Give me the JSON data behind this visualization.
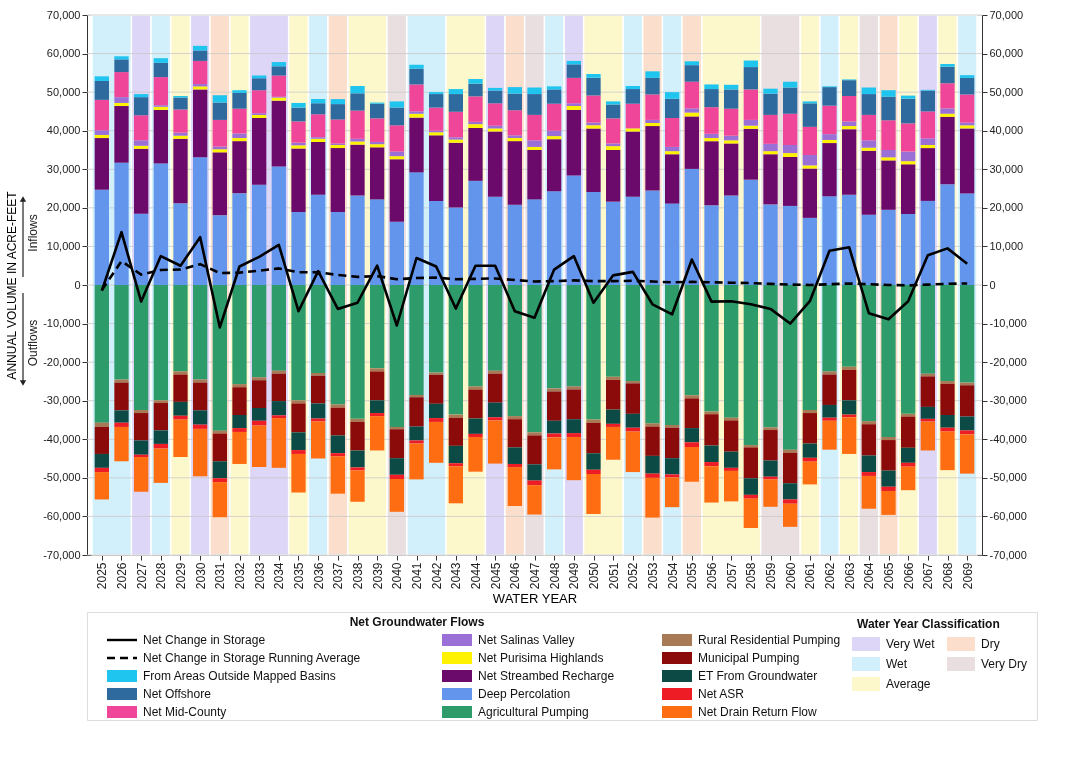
{
  "chart_data": {
    "type": "bar",
    "stacked": true,
    "xlabel": "WATER YEAR",
    "ylabel": "ANNUAL VOLUME IN ACRE-FEET",
    "legend_title": "Net Groundwater Flows",
    "annotations": [
      "Inflows",
      "Outflows",
      "Water Year Classification"
    ],
    "categories": [
      "2025",
      "2026",
      "2027",
      "2028",
      "2029",
      "2030",
      "2031",
      "2032",
      "2033",
      "2034",
      "2035",
      "2036",
      "2037",
      "2038",
      "2039",
      "2040",
      "2041",
      "2042",
      "2043",
      "2044",
      "2045",
      "2046",
      "2047",
      "2048",
      "2049",
      "2050",
      "2051",
      "2052",
      "2053",
      "2054",
      "2055",
      "2056",
      "2057",
      "2058",
      "2059",
      "2060",
      "2061",
      "2062",
      "2063",
      "2064",
      "2065",
      "2066",
      "2067",
      "2068",
      "2069"
    ],
    "series": [
      {
        "name": "Deep Percolation",
        "color": "#6495ed",
        "values": [
          24700,
          31700,
          18500,
          31500,
          21200,
          33100,
          18100,
          23800,
          26000,
          30700,
          18900,
          23400,
          18900,
          23200,
          22200,
          16400,
          29200,
          21800,
          20100,
          27000,
          22900,
          20800,
          22200,
          24300,
          28400,
          24100,
          21600,
          22900,
          24500,
          21100,
          30100,
          20700,
          23200,
          27300,
          20900,
          20500,
          17400,
          23000,
          23400,
          18200,
          19500,
          18400,
          21800,
          26100,
          23700
        ]
      },
      {
        "name": "Net Streambed Recharge",
        "color": "#6b0a6b",
        "values": [
          13400,
          14700,
          16800,
          13900,
          16700,
          17600,
          16300,
          13500,
          17300,
          17100,
          16500,
          13700,
          16600,
          13200,
          13500,
          16200,
          14200,
          17000,
          16800,
          13700,
          16900,
          16500,
          12800,
          13500,
          17000,
          16500,
          13400,
          16900,
          16700,
          12800,
          13600,
          16600,
          13500,
          13200,
          13000,
          12700,
          12800,
          13800,
          17000,
          16600,
          12800,
          12900,
          13700,
          17500,
          16900
        ]
      },
      {
        "name": "Net Purisima Highlands",
        "color": "#fff200",
        "values": [
          800,
          800,
          800,
          800,
          800,
          800,
          800,
          800,
          800,
          800,
          800,
          800,
          800,
          800,
          800,
          800,
          1000,
          800,
          800,
          1000,
          800,
          800,
          800,
          800,
          1000,
          800,
          1000,
          800,
          800,
          800,
          1000,
          800,
          800,
          800,
          800,
          1000,
          800,
          800,
          800,
          800,
          800,
          800,
          800,
          800,
          800
        ]
      },
      {
        "name": "Net Salinas Valley",
        "color": "#9a6fd6",
        "values": [
          1200,
          1500,
          1400,
          400,
          800,
          600,
          700,
          1200,
          400,
          200,
          700,
          400,
          400,
          700,
          600,
          1200,
          600,
          400,
          600,
          600,
          700,
          700,
          1700,
          1400,
          700,
          700,
          700,
          null,
          800,
          1100,
          1100,
          1100,
          1200,
          1500,
          1900,
          2100,
          2700,
          1500,
          1200,
          1900,
          1900,
          2500,
          1700,
          1400,
          700
        ]
      },
      {
        "name": "Net Mid-County",
        "color": "#f0469a",
        "values": [
          7900,
          6500,
          6500,
          7300,
          6000,
          6000,
          6900,
          6400,
          6000,
          5500,
          5500,
          6000,
          6200,
          7300,
          6100,
          6800,
          7000,
          6000,
          6600,
          6600,
          5800,
          6500,
          6600,
          7000,
          6600,
          7000,
          6500,
          6400,
          6600,
          7500,
          6900,
          6900,
          7000,
          7900,
          7500,
          8100,
          7300,
          7400,
          6600,
          6600,
          7700,
          7300,
          7000,
          6500,
          7300
        ]
      },
      {
        "name": "Net Offshore",
        "color": "#2f6a9f",
        "values": [
          4900,
          3300,
          4700,
          3700,
          3100,
          2700,
          4500,
          4100,
          3100,
          2400,
          3600,
          2800,
          4000,
          4500,
          3800,
          4600,
          4100,
          3500,
          4600,
          3300,
          3300,
          4300,
          5400,
          3700,
          3500,
          4600,
          3600,
          3800,
          4300,
          5000,
          4300,
          4700,
          5000,
          5800,
          5500,
          6800,
          6100,
          4800,
          4100,
          5400,
          6100,
          6400,
          5400,
          4300,
          4300
        ]
      },
      {
        "name": "From Areas Outside Mapped Basins",
        "color": "#1fc4ef",
        "values": [
          1200,
          800,
          800,
          1200,
          400,
          1200,
          1900,
          700,
          700,
          1100,
          1200,
          1100,
          1300,
          1900,
          300,
          1600,
          1000,
          500,
          1300,
          1200,
          700,
          1700,
          1700,
          800,
          900,
          1000,
          800,
          800,
          1700,
          1700,
          1000,
          1200,
          1200,
          1700,
          1300,
          1500,
          500,
          200,
          200,
          1700,
          1700,
          800,
          200,
          700,
          700
        ]
      },
      {
        "name": "Agricultural Pumping",
        "color": "#2e9b6b",
        "values": [
          -35700,
          -24500,
          -32400,
          -29900,
          -22400,
          -24500,
          -37800,
          -25700,
          -23900,
          -22200,
          -29900,
          -22800,
          -31000,
          -34700,
          -21600,
          -36800,
          -28500,
          -22700,
          -33600,
          -26300,
          -22200,
          -34000,
          -38200,
          -26800,
          -26300,
          -34900,
          -23800,
          -24900,
          -35900,
          -36300,
          -28600,
          -32800,
          -34400,
          -41500,
          -36900,
          -42700,
          -32400,
          -22400,
          -21200,
          -35300,
          -39400,
          -33400,
          -23000,
          -24900,
          -25300
        ]
      },
      {
        "name": "Rural Residential Pumping",
        "color": "#a77a55",
        "values": [
          -1100,
          -800,
          -800,
          -700,
          -800,
          -800,
          -700,
          -800,
          -800,
          -800,
          -800,
          -700,
          -800,
          -800,
          -800,
          -600,
          -600,
          -600,
          -800,
          -800,
          -800,
          -800,
          -800,
          -800,
          -800,
          -800,
          -800,
          -600,
          -800,
          -700,
          -800,
          -700,
          -700,
          -600,
          -700,
          -800,
          -800,
          -800,
          -800,
          -800,
          -800,
          -700,
          -700,
          -700,
          -700
        ]
      },
      {
        "name": "Municipal Pumping",
        "color": "#8b0a0a",
        "values": [
          -7000,
          -7200,
          -7100,
          -7100,
          -7100,
          -7200,
          -7200,
          -7200,
          -7200,
          -7100,
          -7500,
          -7200,
          -7200,
          -7400,
          -7500,
          -7500,
          -7600,
          -7500,
          -7300,
          -7500,
          -7500,
          -7300,
          -7500,
          -7600,
          -7700,
          -7900,
          -7700,
          -7900,
          -7600,
          -7900,
          -7700,
          -8100,
          -8100,
          -8000,
          -7900,
          -7900,
          -7900,
          -7900,
          -7900,
          -8100,
          -7900,
          -8100,
          -7900,
          -8100,
          -8100
        ]
      },
      {
        "name": "ET From Groundwater",
        "color": "#0c4a46",
        "values": [
          -3600,
          -3200,
          -3700,
          -3500,
          -3600,
          -3700,
          -4400,
          -3400,
          -3300,
          -3700,
          -4600,
          -3900,
          -4600,
          -4400,
          -3300,
          -4300,
          -3600,
          -3700,
          -4500,
          -4000,
          -3800,
          -4300,
          -4200,
          -3300,
          -3600,
          -4300,
          -3700,
          -3600,
          -4600,
          -4200,
          -3700,
          -4300,
          -4200,
          -4300,
          -4200,
          -4200,
          -3700,
          -3300,
          -3700,
          -4300,
          -4200,
          -3900,
          -3100,
          -3300,
          -3600
        ]
      },
      {
        "name": "Net ASR",
        "color": "#ee1c24",
        "values": [
          -1100,
          -1100,
          -600,
          -1200,
          -1000,
          -1100,
          -1000,
          -1000,
          -1200,
          -700,
          -1000,
          -800,
          -800,
          -800,
          -800,
          -1100,
          -800,
          -1000,
          -800,
          -800,
          -800,
          -800,
          -1200,
          -1000,
          -1000,
          -1100,
          -800,
          -1000,
          -1100,
          -800,
          -1200,
          -1100,
          -800,
          -1000,
          -700,
          -1100,
          -1000,
          -800,
          -700,
          -1000,
          -1100,
          -1000,
          -700,
          -1000,
          -1000
        ]
      },
      {
        "name": "Net Drain Return Flow",
        "color": "#ff6d12",
        "values": [
          -7100,
          -8900,
          -9000,
          -8900,
          -9700,
          -12300,
          -9100,
          -8300,
          -10800,
          -12900,
          -10000,
          -9600,
          -9700,
          -8100,
          -8900,
          -8500,
          -9300,
          -10600,
          -9600,
          -9000,
          -11200,
          -10100,
          -7600,
          -8300,
          -11200,
          -10400,
          -8500,
          -10500,
          -10300,
          -7700,
          -9000,
          -9400,
          -7900,
          -7600,
          -7100,
          -6000,
          -5900,
          -7500,
          -9500,
          -8500,
          -6200,
          -6100,
          -7500,
          -10000,
          -10200
        ]
      },
      {
        "name": "Net Change in Storage",
        "type": "line",
        "line_style": "solid",
        "color": "#000000",
        "values": [
          -1500,
          13700,
          -4300,
          7500,
          5000,
          12400,
          -11000,
          4800,
          7300,
          10400,
          -6800,
          3600,
          -6200,
          -4600,
          5000,
          -10500,
          7000,
          4800,
          -6100,
          5000,
          5000,
          -6800,
          -8500,
          4000,
          7500,
          -4600,
          2500,
          3400,
          -5000,
          -7600,
          6600,
          -4300,
          -4200,
          -5000,
          -6200,
          -10000,
          -4200,
          8900,
          9800,
          -7300,
          -8900,
          -4200,
          7700,
          9500,
          5500
        ]
      },
      {
        "name": "Net Change in Storage Running Average",
        "type": "line",
        "line_style": "dashed",
        "color": "#000000",
        "values": [
          -1300,
          6200,
          2700,
          3900,
          4000,
          5400,
          3100,
          3200,
          3700,
          4300,
          3300,
          3300,
          2600,
          2100,
          2300,
          1500,
          1800,
          1900,
          1500,
          1600,
          1700,
          1300,
          900,
          1000,
          1200,
          1000,
          1000,
          1100,
          900,
          700,
          800,
          700,
          600,
          500,
          300,
          100,
          0,
          200,
          400,
          200,
          0,
          -100,
          100,
          300,
          400
        ]
      }
    ],
    "ylim": [
      -70000,
      70000
    ],
    "yticks": [
      {
        "value": -70000,
        "label": "-70,000"
      },
      {
        "value": -60000,
        "label": "-60,000"
      },
      {
        "value": -50000,
        "label": "-50,000"
      },
      {
        "value": -40000,
        "label": "-40,000"
      },
      {
        "value": -30000,
        "label": "-30,000"
      },
      {
        "value": -20000,
        "label": "-20,000"
      },
      {
        "value": -10000,
        "label": "-10,000"
      },
      0,
      {
        "value": 10000,
        "label": "10,000"
      },
      {
        "value": 20000,
        "label": "20,000"
      },
      {
        "value": 30000,
        "label": "30,000"
      },
      {
        "value": 40000,
        "label": "40,000"
      },
      {
        "value": 50000,
        "label": "50,000"
      },
      {
        "value": 60000,
        "label": "60,000"
      },
      {
        "value": 70000,
        "label": "70,000"
      }
    ],
    "y2lim": [
      -70000,
      70000
    ],
    "y2ticks": [
      {
        "value": -70000,
        "label": "-70,000"
      },
      {
        "value": -60000,
        "label": "-60,000"
      },
      {
        "value": -50000,
        "label": "-50,000"
      },
      {
        "value": -40000,
        "label": "-40,000"
      },
      {
        "value": -30000,
        "label": "-30,000"
      },
      {
        "value": -20000,
        "label": "-20,000"
      },
      {
        "value": -10000,
        "label": "-10,000"
      },
      0,
      {
        "value": 10000,
        "label": "10,000"
      },
      {
        "value": 20000,
        "label": "20,000"
      },
      {
        "value": 30000,
        "label": "30,000"
      },
      {
        "value": 40000,
        "label": "40,000"
      },
      {
        "value": 50000,
        "label": "50,000"
      },
      {
        "value": 60000,
        "label": "60,000"
      },
      {
        "value": 70000,
        "label": "70,000"
      }
    ],
    "grid": "y",
    "legend": "bottom",
    "marker": "none",
    "bands": [
      {
        "axis": "x",
        "from": "2027",
        "to": "2027",
        "label": "Very Wet",
        "color": "#ddd6f6"
      },
      {
        "axis": "x",
        "from": "2030",
        "to": "2030",
        "color": "#ddd6f6"
      },
      {
        "axis": "x",
        "from": "2033",
        "to": "2034",
        "color": "#ddd6f6"
      },
      {
        "axis": "x",
        "from": "2045",
        "to": "2045",
        "color": "#ddd6f6"
      },
      {
        "axis": "x",
        "from": "2049",
        "to": "2049",
        "color": "#ddd6f6"
      },
      {
        "axis": "x",
        "from": "2067",
        "to": "2067",
        "color": "#ddd6f6"
      },
      {
        "axis": "x",
        "from": "2025",
        "to": "2026",
        "label": "Wet",
        "color": "#d2f0fb"
      },
      {
        "axis": "x",
        "from": "2028",
        "to": "2028",
        "color": "#d2f0fb"
      },
      {
        "axis": "x",
        "from": "2036",
        "to": "2036",
        "color": "#d2f0fb"
      },
      {
        "axis": "x",
        "from": "2041",
        "to": "2042",
        "color": "#d2f0fb"
      },
      {
        "axis": "x",
        "from": "2048",
        "to": "2048",
        "color": "#d2f0fb"
      },
      {
        "axis": "x",
        "from": "2052",
        "to": "2052",
        "color": "#d2f0fb"
      },
      {
        "axis": "x",
        "from": "2054",
        "to": "2054",
        "color": "#d2f0fb"
      },
      {
        "axis": "x",
        "from": "2062",
        "to": "2062",
        "color": "#d2f0fb"
      },
      {
        "axis": "x",
        "from": "2069",
        "to": "2069",
        "color": "#d2f0fb"
      },
      {
        "axis": "x",
        "from": "2029",
        "to": "2029",
        "label": "Average",
        "color": "#fdf8cc"
      },
      {
        "axis": "x",
        "from": "2032",
        "to": "2032",
        "color": "#fdf8cc"
      },
      {
        "axis": "x",
        "from": "2035",
        "to": "2035",
        "color": "#fdf8cc"
      },
      {
        "axis": "x",
        "from": "2038",
        "to": "2039",
        "color": "#fdf8cc"
      },
      {
        "axis": "x",
        "from": "2043",
        "to": "2044",
        "color": "#fdf8cc"
      },
      {
        "axis": "x",
        "from": "2050",
        "to": "2051",
        "color": "#fdf8cc"
      },
      {
        "axis": "x",
        "from": "2056",
        "to": "2058",
        "color": "#fdf8cc"
      },
      {
        "axis": "x",
        "from": "2061",
        "to": "2061",
        "color": "#fdf8cc"
      },
      {
        "axis": "x",
        "from": "2063",
        "to": "2063",
        "color": "#fdf8cc"
      },
      {
        "axis": "x",
        "from": "2066",
        "to": "2066",
        "color": "#fdf8cc"
      },
      {
        "axis": "x",
        "from": "2068",
        "to": "2068",
        "color": "#fdf8cc"
      },
      {
        "axis": "x",
        "from": "2031",
        "to": "2031",
        "label": "Dry",
        "color": "#fbdecb"
      },
      {
        "axis": "x",
        "from": "2037",
        "to": "2037",
        "color": "#fbdecb"
      },
      {
        "axis": "x",
        "from": "2046",
        "to": "2046",
        "color": "#fbdecb"
      },
      {
        "axis": "x",
        "from": "2053",
        "to": "2053",
        "color": "#fbdecb"
      },
      {
        "axis": "x",
        "from": "2055",
        "to": "2055",
        "color": "#fbdecb"
      },
      {
        "axis": "x",
        "from": "2065",
        "to": "2065",
        "color": "#fbdecb"
      },
      {
        "axis": "x",
        "from": "2040",
        "to": "2040",
        "label": "Very Dry",
        "color": "#e9dfe0"
      },
      {
        "axis": "x",
        "from": "2047",
        "to": "2047",
        "color": "#e9dfe0"
      },
      {
        "axis": "x",
        "from": "2059",
        "to": "2060",
        "color": "#e9dfe0"
      },
      {
        "axis": "x",
        "from": "2064",
        "to": "2064",
        "color": "#e9dfe0"
      }
    ]
  }
}
